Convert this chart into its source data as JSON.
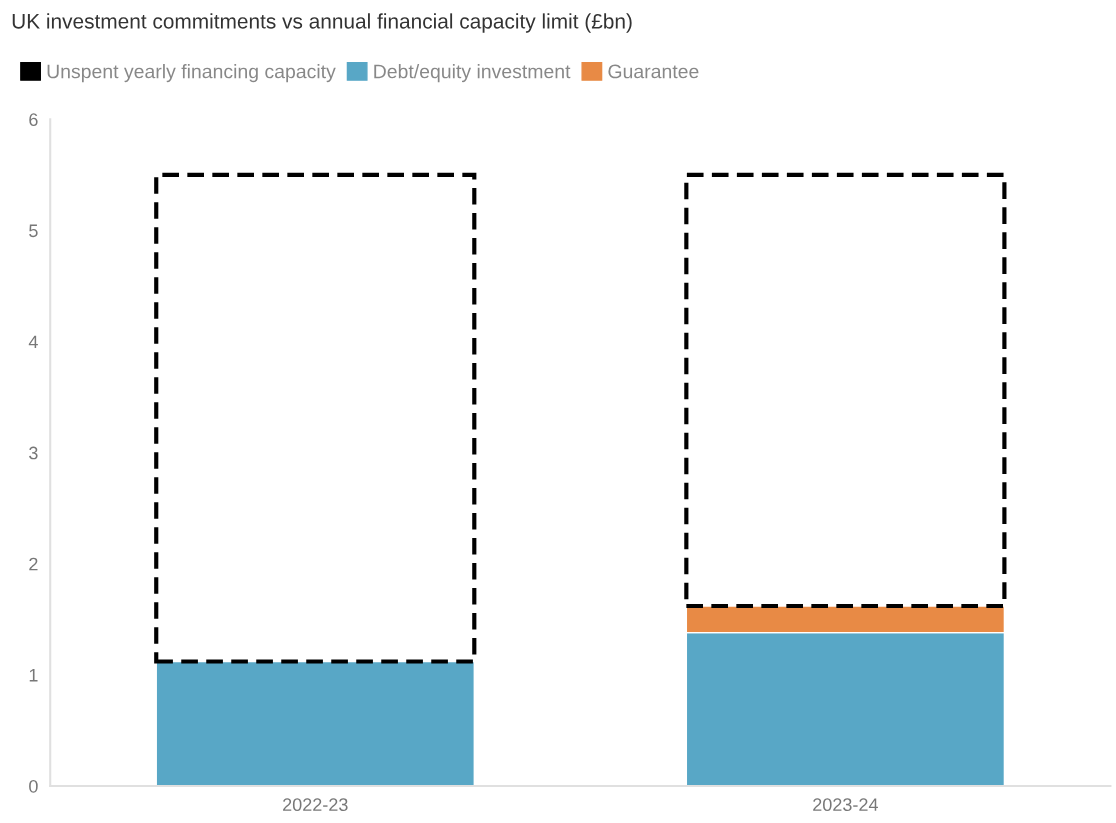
{
  "chart_data": {
    "type": "bar",
    "title": "UK investment commitments vs annual financial capacity limit (£bn)",
    "categories": [
      "2022-23",
      "2023-24"
    ],
    "stacked": true,
    "ylim": [
      0,
      6
    ],
    "yticks": [
      0,
      1,
      2,
      3,
      4,
      5,
      6
    ],
    "grid": false,
    "legend": "top left",
    "series": [
      {
        "name": "Debt/equity investment",
        "color": "#58a7c6",
        "values": [
          1.12,
          1.38
        ]
      },
      {
        "name": "Guarantee",
        "color": "#e88a45",
        "values": [
          null,
          0.24
        ]
      },
      {
        "name": "Unspent yearly financing capacity",
        "color": "#000000",
        "line_style": "dashed",
        "values": [
          4.38,
          3.88
        ]
      }
    ]
  }
}
